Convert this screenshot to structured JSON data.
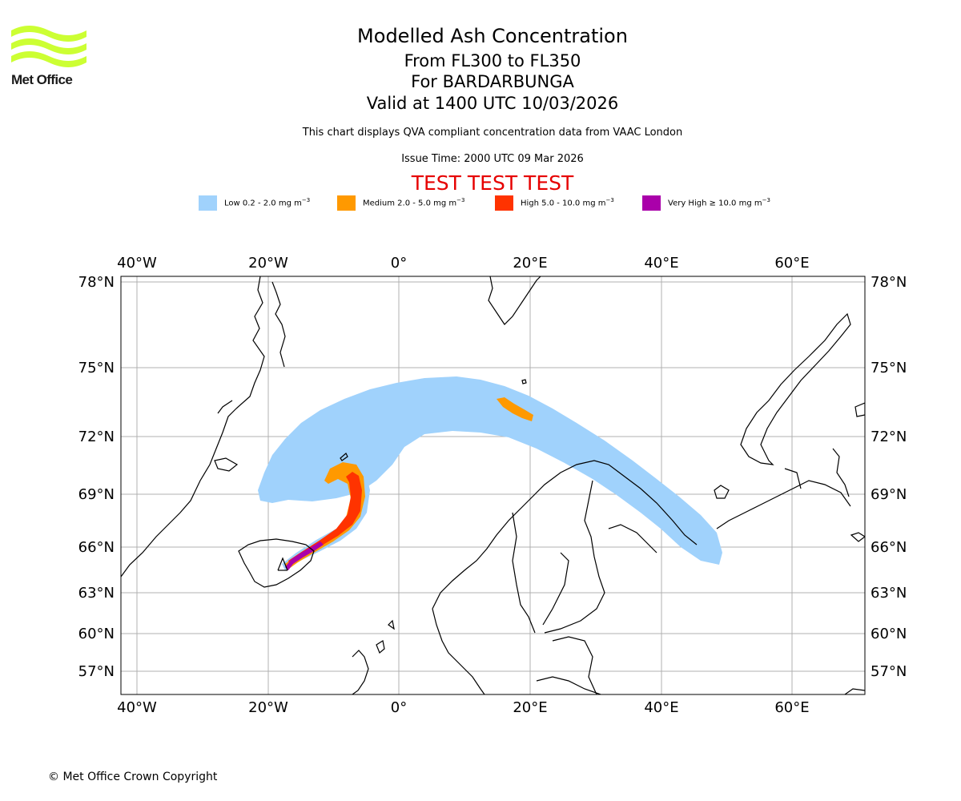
{
  "logo": {
    "name": "Met Office",
    "wave_color": "#ccff33"
  },
  "header": {
    "title": "Modelled Ash Concentration",
    "flight_levels": "From FL300 to FL350",
    "volcano": "For BARDARBUNGA",
    "valid_time": "Valid at 1400 UTC 10/03/2026",
    "description": "This chart displays QVA compliant concentration data from VAAC London",
    "issue_time": "Issue Time: 2000 UTC 09 Mar 2026",
    "test_banner": "TEST TEST TEST"
  },
  "legend": [
    {
      "label": "Low 0.2 - 2.0 mg m",
      "unit_exp": "−3",
      "color": "#a0d2fc"
    },
    {
      "label": "Medium 2.0 - 5.0 mg m",
      "unit_exp": "−3",
      "color": "#ff9900"
    },
    {
      "label": "High 5.0 - 10.0 mg m",
      "unit_exp": "−3",
      "color": "#ff3300"
    },
    {
      "label": "Very High  ≥  10.0 mg m",
      "unit_exp": "−3",
      "color": "#aa00aa"
    }
  ],
  "map": {
    "lon_labels": [
      "40°W",
      "20°W",
      "0°",
      "20°E",
      "40°E",
      "60°E"
    ],
    "lat_labels": [
      "78°N",
      "75°N",
      "72°N",
      "69°N",
      "66°N",
      "63°N",
      "60°N",
      "57°N"
    ],
    "gridline_color": "#b0b0b0",
    "coast_color": "#000000"
  },
  "footer": {
    "copyright": "© Met Office Crown Copyright"
  }
}
